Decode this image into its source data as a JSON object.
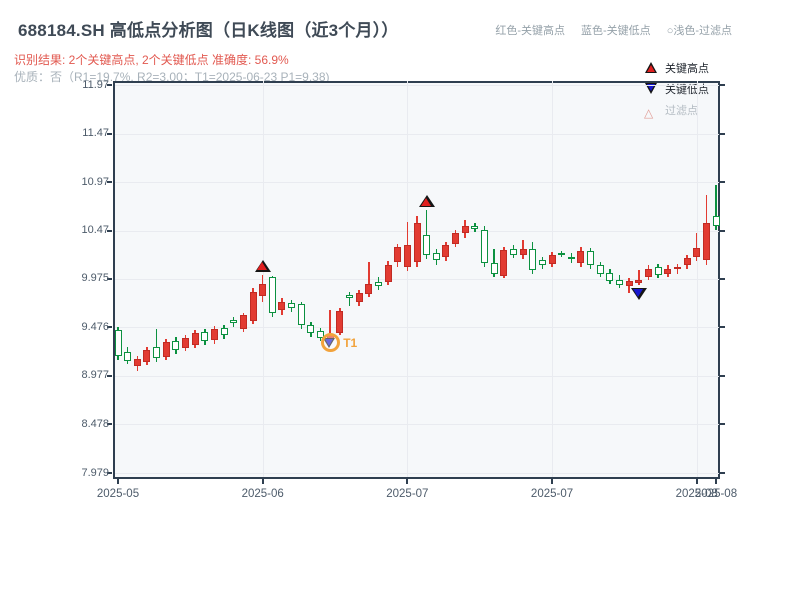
{
  "header": {
    "title": "688184.SH 高低点分析图（日K线图（近3个月））",
    "legend_inline": {
      "high": "红色-关键高点",
      "low": "蓝色-关键低点",
      "filtered": "○浅色-过滤点"
    },
    "result_line": "识别结果: 2个关键高点, 2个关键低点  准确度: 56.9%",
    "quality_line": "优质：否（R1=19.7%, R2=3.00；T1=2025-06-23 P1=9.38)"
  },
  "chart_data": {
    "type": "candlestick",
    "title": "688184.SH 高低点分析图（日K线图（近3个月））",
    "ylim": [
      7.938,
      12.011
    ],
    "grid": true,
    "y_tick_labels": [
      "11.97",
      "11.47",
      "10.97",
      "10.47",
      "9.975",
      "9.476",
      "8.977",
      "8.478",
      "7.979"
    ],
    "x_tick_labels": [
      "2025-05",
      "2025-06",
      "2025-07",
      "2025-07",
      "2025-08",
      "2025-08"
    ],
    "x_tick_indices": [
      0,
      15,
      30,
      45,
      60,
      62
    ],
    "legend": [
      {
        "label": "关键高点",
        "marker": "red-up-triangle"
      },
      {
        "label": "关键低点",
        "marker": "blue-down-triangle"
      },
      {
        "label": "过滤点",
        "marker": "light-open-triangle"
      }
    ],
    "candles_ohlc": [
      [
        9.45,
        9.48,
        9.14,
        9.18
      ],
      [
        9.22,
        9.28,
        9.1,
        9.13
      ],
      [
        9.08,
        9.18,
        9.03,
        9.15
      ],
      [
        9.12,
        9.27,
        9.09,
        9.24
      ],
      [
        9.27,
        9.46,
        9.12,
        9.16
      ],
      [
        9.17,
        9.36,
        9.14,
        9.33
      ],
      [
        9.34,
        9.38,
        9.2,
        9.24
      ],
      [
        9.26,
        9.4,
        9.23,
        9.37
      ],
      [
        9.3,
        9.45,
        9.26,
        9.42
      ],
      [
        9.43,
        9.46,
        9.3,
        9.34
      ],
      [
        9.35,
        9.49,
        9.31,
        9.46
      ],
      [
        9.47,
        9.5,
        9.36,
        9.4
      ],
      [
        9.55,
        9.58,
        9.48,
        9.52
      ],
      [
        9.46,
        9.62,
        9.43,
        9.6
      ],
      [
        9.54,
        9.88,
        9.51,
        9.84
      ],
      [
        9.8,
        10.02,
        9.74,
        9.92
      ],
      [
        9.99,
        10.01,
        9.58,
        9.62
      ],
      [
        9.66,
        9.78,
        9.6,
        9.74
      ],
      [
        9.73,
        9.76,
        9.64,
        9.68
      ],
      [
        9.72,
        9.74,
        9.46,
        9.5
      ],
      [
        9.5,
        9.53,
        9.38,
        9.42
      ],
      [
        9.44,
        9.47,
        9.34,
        9.37
      ],
      [
        9.36,
        9.66,
        9.33,
        9.41
      ],
      [
        9.42,
        9.68,
        9.4,
        9.65
      ],
      [
        9.81,
        9.84,
        9.7,
        9.78
      ],
      [
        9.74,
        9.86,
        9.7,
        9.83
      ],
      [
        9.82,
        10.15,
        9.79,
        9.92
      ],
      [
        9.94,
        9.99,
        9.86,
        9.9
      ],
      [
        9.94,
        10.16,
        9.91,
        10.12
      ],
      [
        10.15,
        10.33,
        10.1,
        10.3
      ],
      [
        10.1,
        10.56,
        10.06,
        10.32
      ],
      [
        10.15,
        10.62,
        10.1,
        10.55
      ],
      [
        10.43,
        10.68,
        10.18,
        10.22
      ],
      [
        10.24,
        10.28,
        10.12,
        10.17
      ],
      [
        10.2,
        10.35,
        10.16,
        10.32
      ],
      [
        10.33,
        10.48,
        10.3,
        10.45
      ],
      [
        10.45,
        10.58,
        10.4,
        10.52
      ],
      [
        10.52,
        10.55,
        10.46,
        10.49
      ],
      [
        10.48,
        10.52,
        10.1,
        10.14
      ],
      [
        10.14,
        10.28,
        10.0,
        10.03
      ],
      [
        10.01,
        10.3,
        9.98,
        10.27
      ],
      [
        10.28,
        10.32,
        10.19,
        10.22
      ],
      [
        10.22,
        10.38,
        10.18,
        10.28
      ],
      [
        10.28,
        10.36,
        10.03,
        10.07
      ],
      [
        10.17,
        10.2,
        10.08,
        10.12
      ],
      [
        10.13,
        10.25,
        10.1,
        10.22
      ],
      [
        10.24,
        10.26,
        10.2,
        10.22
      ],
      [
        10.2,
        10.24,
        10.14,
        10.18
      ],
      [
        10.14,
        10.3,
        10.1,
        10.26
      ],
      [
        10.26,
        10.29,
        10.08,
        10.12
      ],
      [
        10.12,
        10.15,
        9.99,
        10.03
      ],
      [
        10.04,
        10.08,
        9.92,
        9.95
      ],
      [
        9.96,
        10.02,
        9.88,
        9.91
      ],
      [
        9.9,
        9.98,
        9.83,
        9.95
      ],
      [
        9.93,
        10.07,
        9.91,
        9.96
      ],
      [
        10.0,
        10.12,
        9.96,
        10.08
      ],
      [
        10.1,
        10.13,
        9.98,
        10.02
      ],
      [
        10.03,
        10.12,
        9.99,
        10.08
      ],
      [
        10.08,
        10.13,
        10.03,
        10.1
      ],
      [
        10.12,
        10.22,
        10.08,
        10.19
      ],
      [
        10.2,
        10.45,
        10.16,
        10.29
      ],
      [
        10.17,
        10.84,
        10.12,
        10.55
      ],
      [
        10.62,
        10.94,
        10.48,
        10.52
      ]
    ],
    "markers": [
      {
        "index": 15,
        "type": "key_high"
      },
      {
        "index": 32,
        "type": "key_high"
      },
      {
        "index": 22,
        "type": "key_low",
        "circled": true,
        "label": "T1"
      },
      {
        "index": 54,
        "type": "key_low"
      }
    ],
    "colors": {
      "up_candle": "#e23b32",
      "down_candle": "#0c9140",
      "key_high": "#e01f1f",
      "key_low": "#1717cf",
      "circle": "#f2a33c",
      "grid": "#e9ebf0",
      "axis": "#2f3f50",
      "plot_bg": "#f6f8fa"
    }
  }
}
